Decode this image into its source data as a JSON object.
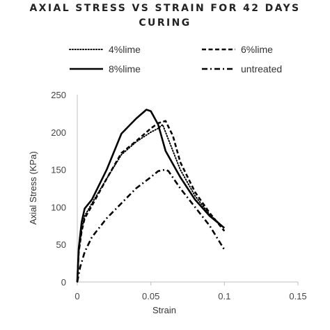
{
  "chart_data": {
    "type": "line",
    "title_lines": [
      "AXIAL STRESS VS STRAIN FOR 42 DAYS",
      "CURING"
    ],
    "xlabel": "Strain",
    "ylabel": "Axial Stress (KPa)",
    "xlim": [
      0,
      0.15
    ],
    "ylim": [
      0,
      250
    ],
    "x_ticks": [
      0,
      0.05,
      0.1,
      0.15
    ],
    "x_tick_labels": [
      "0",
      "0.05",
      "0.1",
      "0.15"
    ],
    "y_ticks": [
      0,
      50,
      100,
      150,
      200,
      250
    ],
    "y_tick_labels": [
      "0",
      "50",
      "100",
      "150",
      "200",
      "250"
    ],
    "grid": false,
    "legend_position": "top",
    "series": [
      {
        "name": "4%lime",
        "style": "dotted",
        "color": "#000000",
        "x": [
          0,
          0.001,
          0.003,
          0.005,
          0.01,
          0.02,
          0.03,
          0.04,
          0.05,
          0.055,
          0.058,
          0.062,
          0.07,
          0.08,
          0.09,
          0.1
        ],
        "y": [
          0,
          40,
          70,
          88,
          105,
          138,
          170,
          187,
          200,
          205,
          210,
          190,
          150,
          115,
          90,
          72
        ]
      },
      {
        "name": "6%lime",
        "style": "dashed",
        "color": "#000000",
        "x": [
          0,
          0.001,
          0.003,
          0.005,
          0.01,
          0.02,
          0.03,
          0.04,
          0.05,
          0.055,
          0.06,
          0.065,
          0.07,
          0.08,
          0.09,
          0.1
        ],
        "y": [
          0,
          40,
          68,
          85,
          102,
          138,
          172,
          188,
          205,
          212,
          215,
          195,
          160,
          120,
          92,
          68
        ]
      },
      {
        "name": "8%lime",
        "style": "solid",
        "color": "#000000",
        "x": [
          0,
          0.001,
          0.003,
          0.005,
          0.01,
          0.02,
          0.03,
          0.04,
          0.047,
          0.05,
          0.055,
          0.06,
          0.07,
          0.08,
          0.09,
          0.1
        ],
        "y": [
          0,
          45,
          80,
          98,
          110,
          150,
          198,
          218,
          230,
          228,
          210,
          175,
          140,
          110,
          88,
          72
        ]
      },
      {
        "name": "untreated",
        "style": "dashdot",
        "color": "#000000",
        "x": [
          0,
          0.002,
          0.005,
          0.01,
          0.02,
          0.03,
          0.04,
          0.05,
          0.055,
          0.06,
          0.062,
          0.07,
          0.08,
          0.09,
          0.1
        ],
        "y": [
          0,
          20,
          40,
          60,
          85,
          105,
          125,
          140,
          148,
          150,
          148,
          125,
          100,
          75,
          43
        ]
      }
    ]
  }
}
